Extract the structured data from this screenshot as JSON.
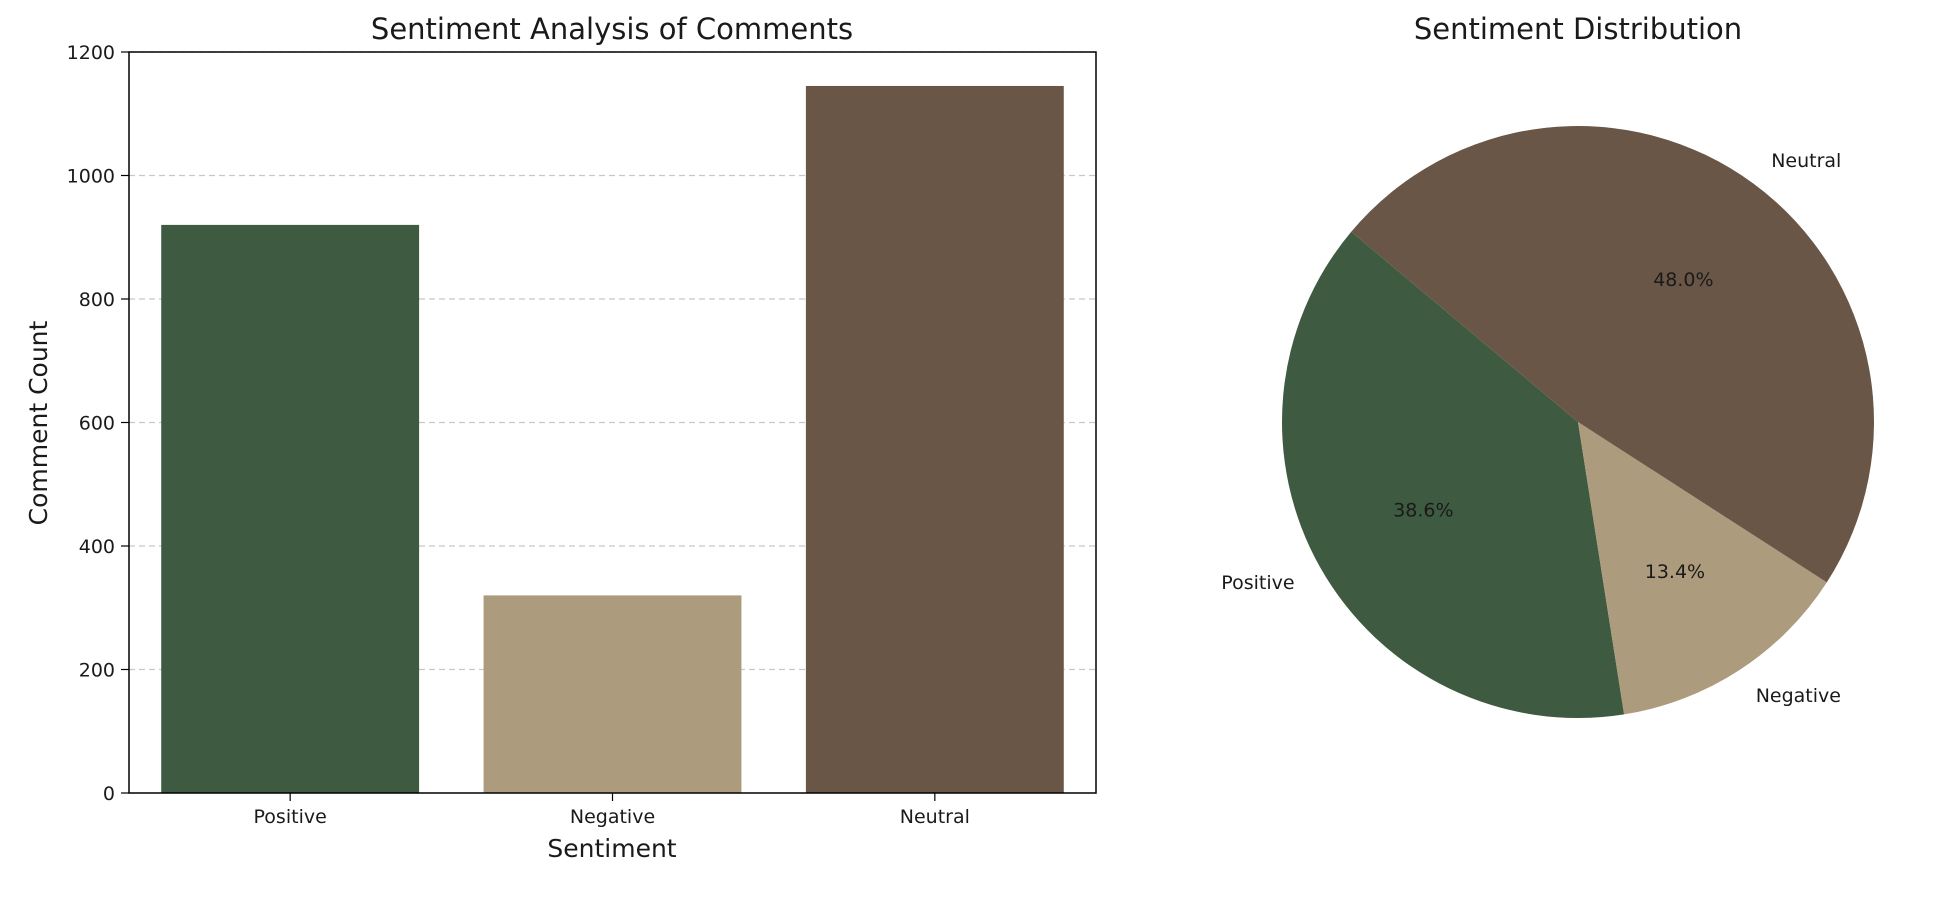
{
  "chart_data": [
    {
      "type": "bar",
      "title": "Sentiment Analysis of Comments",
      "xlabel": "Sentiment",
      "ylabel": "Comment Count",
      "categories": [
        "Positive",
        "Negative",
        "Neutral"
      ],
      "values": [
        920,
        320,
        1145
      ],
      "colors": [
        "#3e5a40",
        "#ad9b7d",
        "#695646"
      ],
      "ylim": [
        0,
        1200
      ],
      "yticks": [
        0,
        200,
        400,
        600,
        800,
        1000,
        1200
      ],
      "grid": "y-dashed"
    },
    {
      "type": "pie",
      "title": "Sentiment Distribution",
      "labels": [
        "Positive",
        "Negative",
        "Neutral"
      ],
      "percent_labels": [
        "38.6%",
        "13.4%",
        "48.0%"
      ],
      "values": [
        38.6,
        13.4,
        48.0
      ],
      "colors": [
        "#3e5a40",
        "#ad9b7d",
        "#695646"
      ]
    }
  ]
}
